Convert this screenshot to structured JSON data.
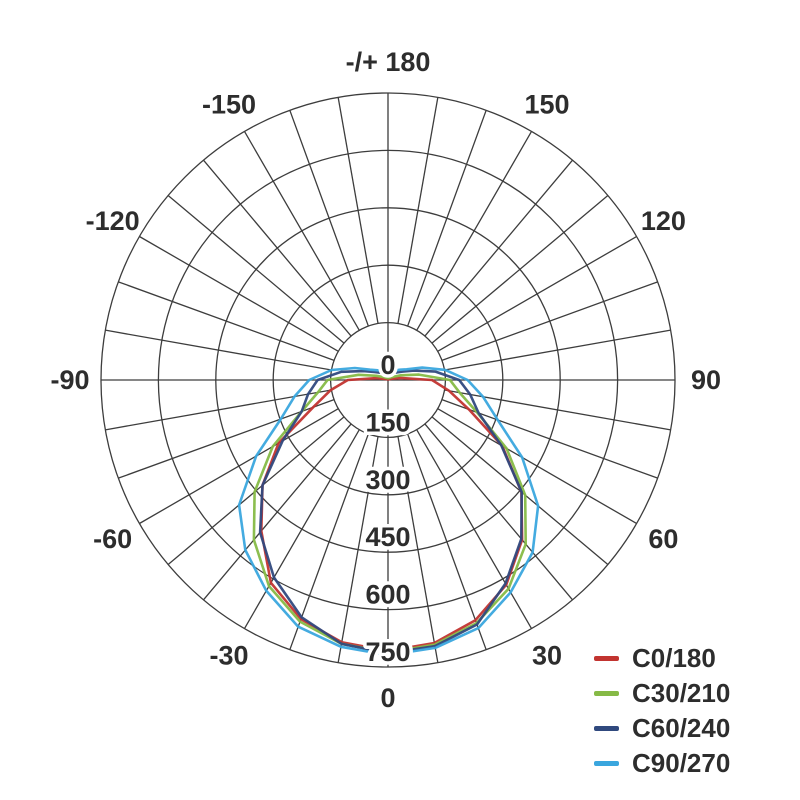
{
  "chart_data": {
    "type": "line",
    "subtype": "polar-photometric-distribution",
    "title": "",
    "angle_unit": "deg",
    "orientation": "0-at-bottom, positive-right, negative-left, 180-at-top",
    "radial_max": 750,
    "radial_ticks": [
      0,
      150,
      300,
      450,
      600,
      750
    ],
    "radial_tick_labels": [
      "0",
      "150",
      "300",
      "450",
      "600",
      "750"
    ],
    "grid": {
      "ring_step": 150,
      "spoke_step_deg": 10,
      "spoke_inner_value": 150,
      "label_step_deg": 30,
      "line_color": "#3d3d3d",
      "text_color": "#2d2d2d",
      "legend_position": "bottom-right"
    },
    "angle_ticks": [
      {
        "deg": 180,
        "label": "-/+ 180"
      },
      {
        "deg": -150,
        "label": "-150"
      },
      {
        "deg": -120,
        "label": "-120"
      },
      {
        "deg": -90,
        "label": "-90"
      },
      {
        "deg": -60,
        "label": "-60"
      },
      {
        "deg": -30,
        "label": "-30"
      },
      {
        "deg": 0,
        "label": "0"
      },
      {
        "deg": 30,
        "label": "30"
      },
      {
        "deg": 60,
        "label": "60"
      },
      {
        "deg": 90,
        "label": "90"
      },
      {
        "deg": 120,
        "label": "120"
      },
      {
        "deg": 150,
        "label": "150"
      }
    ],
    "angles": [
      -180,
      -170,
      -160,
      -150,
      -140,
      -130,
      -120,
      -110,
      -100,
      -90,
      -80,
      -70,
      -60,
      -50,
      -40,
      -30,
      -20,
      -10,
      0,
      10,
      20,
      30,
      40,
      50,
      60,
      70,
      80,
      90,
      100,
      110,
      120,
      130,
      140,
      150,
      160,
      170,
      180
    ],
    "series": [
      {
        "name": "C0/180",
        "color": "#c23430",
        "values": [
          2,
          2,
          2,
          2,
          2,
          3,
          4,
          8,
          28,
          105,
          152,
          208,
          330,
          428,
          515,
          612,
          665,
          696,
          708,
          698,
          668,
          618,
          545,
          455,
          345,
          225,
          162,
          115,
          32,
          9,
          4,
          3,
          2,
          2,
          2,
          2,
          2
        ]
      },
      {
        "name": "C30/210",
        "color": "#86ba46",
        "values": [
          5,
          5,
          5,
          6,
          7,
          10,
          16,
          32,
          78,
          158,
          186,
          240,
          348,
          455,
          545,
          622,
          672,
          700,
          712,
          702,
          676,
          630,
          560,
          468,
          358,
          248,
          190,
          162,
          82,
          36,
          18,
          11,
          8,
          6,
          5,
          5,
          5
        ]
      },
      {
        "name": "C60/240",
        "color": "#30497e",
        "values": [
          18,
          18,
          18,
          20,
          24,
          30,
          42,
          68,
          124,
          184,
          212,
          240,
          318,
          428,
          520,
          596,
          660,
          700,
          714,
          706,
          680,
          614,
          542,
          456,
          342,
          252,
          218,
          186,
          126,
          72,
          44,
          31,
          25,
          21,
          19,
          18,
          18
        ]
      },
      {
        "name": "C90/270",
        "color": "#3aa6de",
        "values": [
          29,
          30,
          29,
          31,
          32,
          40,
          54,
          92,
          150,
          206,
          248,
          298,
          398,
          508,
          580,
          636,
          686,
          708,
          719,
          711,
          690,
          641,
          588,
          512,
          405,
          305,
          252,
          208,
          152,
          95,
          56,
          42,
          33,
          31,
          30,
          30,
          29
        ]
      }
    ]
  }
}
